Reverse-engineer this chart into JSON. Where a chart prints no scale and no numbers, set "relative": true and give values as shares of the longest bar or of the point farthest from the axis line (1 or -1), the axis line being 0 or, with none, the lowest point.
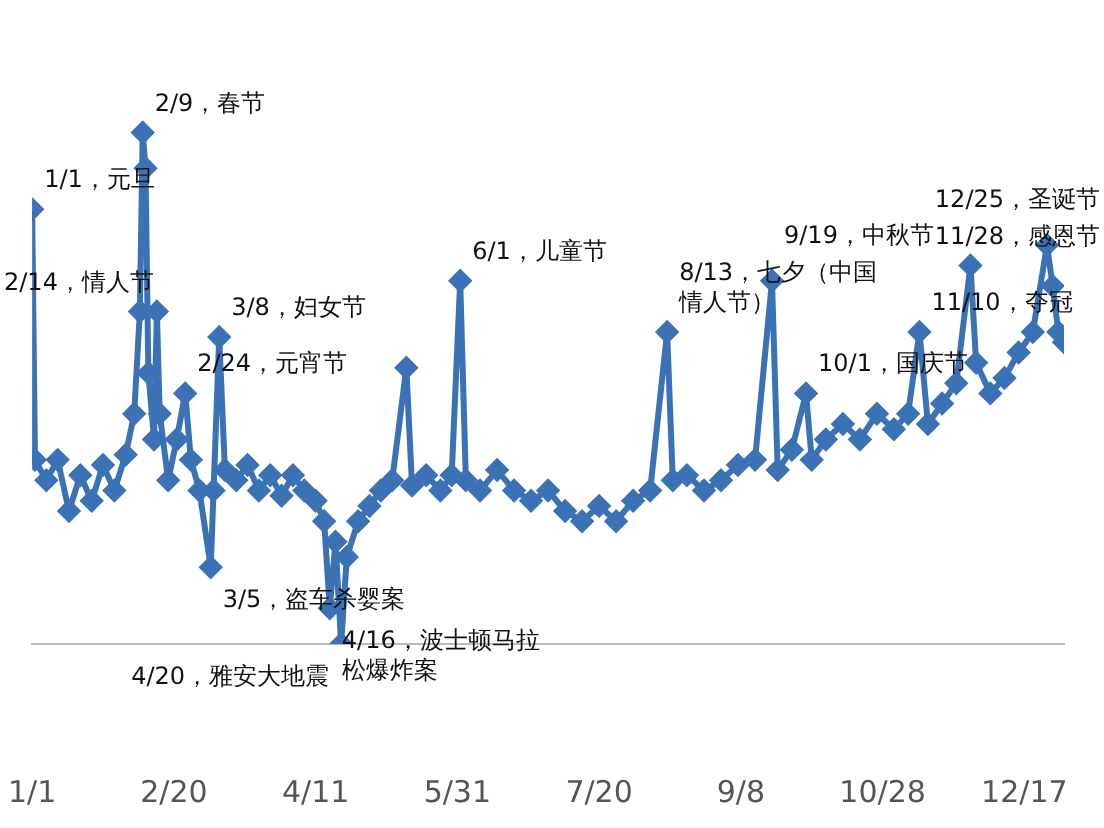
{
  "chart_data": {
    "type": "line",
    "relative": true,
    "marker": "diamond",
    "line_style": "solid",
    "legend": false,
    "x": [
      "--01-01",
      "--01-02",
      "--01-06",
      "--01-10",
      "--01-14",
      "--01-18",
      "--01-22",
      "--01-26",
      "--01-30",
      "--02-03",
      "--02-06",
      "--02-08",
      "--02-09",
      "--02-10",
      "--02-11",
      "--02-13",
      "--02-14",
      "--02-15",
      "--02-18",
      "--02-21",
      "--02-24",
      "--02-26",
      "--03-01",
      "--03-05",
      "--03-06",
      "--03-08",
      "--03-10",
      "--03-14",
      "--03-18",
      "--03-22",
      "--03-26",
      "--03-30",
      "--04-03",
      "--04-07",
      "--04-11",
      "--04-14",
      "--04-16",
      "--04-18",
      "--04-20",
      "--04-22",
      "--04-26",
      "--04-30",
      "--05-04",
      "--05-08",
      "--05-13",
      "--05-15",
      "--05-20",
      "--05-25",
      "--05-29",
      "--06-01",
      "--06-03",
      "--06-08",
      "--06-14",
      "--06-20",
      "--06-26",
      "--07-02",
      "--07-08",
      "--07-14",
      "--07-20",
      "--07-26",
      "--08-01",
      "--08-07",
      "--08-13",
      "--08-15",
      "--08-20",
      "--08-26",
      "--09-01",
      "--09-07",
      "--09-13",
      "--09-19",
      "--09-21",
      "--09-26",
      "--10-01",
      "--10-03",
      "--10-08",
      "--10-14",
      "--10-20",
      "--10-26",
      "--11-01",
      "--11-06",
      "--11-10",
      "--11-13",
      "--11-18",
      "--11-23",
      "--11-28",
      "--11-30",
      "--12-05",
      "--12-10",
      "--12-15",
      "--12-20",
      "--12-25",
      "--12-27",
      "--12-29",
      "--12-31"
    ],
    "series": [
      {
        "color": "#3b72b5",
        "values": [
          0.85,
          0.36,
          0.32,
          0.36,
          0.26,
          0.33,
          0.28,
          0.35,
          0.3,
          0.37,
          0.45,
          0.65,
          1,
          0.93,
          0.53,
          0.4,
          0.65,
          0.45,
          0.32,
          0.4,
          0.49,
          0.36,
          0.3,
          0.15,
          0.3,
          0.6,
          0.34,
          0.32,
          0.35,
          0.3,
          0.33,
          0.29,
          0.33,
          0.3,
          0.28,
          0.24,
          0.07,
          0.2,
          0,
          0.17,
          0.24,
          0.27,
          0.3,
          0.32,
          0.54,
          0.31,
          0.33,
          0.3,
          0.33,
          0.71,
          0.32,
          0.3,
          0.34,
          0.3,
          0.28,
          0.3,
          0.26,
          0.24,
          0.27,
          0.24,
          0.28,
          0.3,
          0.61,
          0.32,
          0.33,
          0.3,
          0.32,
          0.35,
          0.36,
          0.71,
          0.34,
          0.38,
          0.49,
          0.36,
          0.4,
          0.43,
          0.4,
          0.45,
          0.42,
          0.45,
          0.61,
          0.43,
          0.47,
          0.51,
          0.74,
          0.55,
          0.49,
          0.52,
          0.57,
          0.61,
          0.78,
          0.7,
          0.61,
          0.59
        ]
      }
    ],
    "xlim": [
      "--01-01",
      "--12-31"
    ],
    "xticks": [
      {
        "value": "--01-01",
        "label": "1/1"
      },
      {
        "value": "--02-20",
        "label": "2/20"
      },
      {
        "value": "--04-11",
        "label": "4/11"
      },
      {
        "value": "--05-31",
        "label": "5/31"
      },
      {
        "value": "--07-20",
        "label": "7/20"
      },
      {
        "value": "--09-08",
        "label": "9/8"
      },
      {
        "value": "--10-28",
        "label": "10/28"
      },
      {
        "value": "--12-17",
        "label": "12/17"
      }
    ],
    "annotations": [
      {
        "text": "1/1，元旦",
        "x": "--01-01",
        "y": 0.85
      },
      {
        "text": "2/9，春节",
        "x": "--02-09",
        "y": 1
      },
      {
        "text": "2/14，情人节",
        "x": "--02-14",
        "y": 0.65
      },
      {
        "text": "2/24，元宵节",
        "x": "--02-24",
        "y": 0.49
      },
      {
        "text": "3/5，盗车杀婴案",
        "x": "--03-05",
        "y": 0.15
      },
      {
        "text": "3/8，妇女节",
        "x": "--03-08",
        "y": 0.6
      },
      {
        "text": "4/16，波士顿马拉松爆炸案",
        "x": "--04-16",
        "y": 0.07
      },
      {
        "text": "4/20，雅安大地震",
        "x": "--04-20",
        "y": 0
      },
      {
        "text": "6/1，儿童节",
        "x": "--06-01",
        "y": 0.71
      },
      {
        "text": "8/13，七夕（中国情人节）",
        "x": "--08-13",
        "y": 0.61
      },
      {
        "text": "9/19，中秋节",
        "x": "--09-19",
        "y": 0.71
      },
      {
        "text": "10/1，国庆节",
        "x": "--10-01",
        "y": 0.49
      },
      {
        "text": "11/10，夺冠",
        "x": "--11-10",
        "y": 0.61
      },
      {
        "text": "11/28，感恩节",
        "x": "--11-28",
        "y": 0.74
      },
      {
        "text": "12/25，圣诞节",
        "x": "--12-25",
        "y": 0.78
      }
    ]
  }
}
